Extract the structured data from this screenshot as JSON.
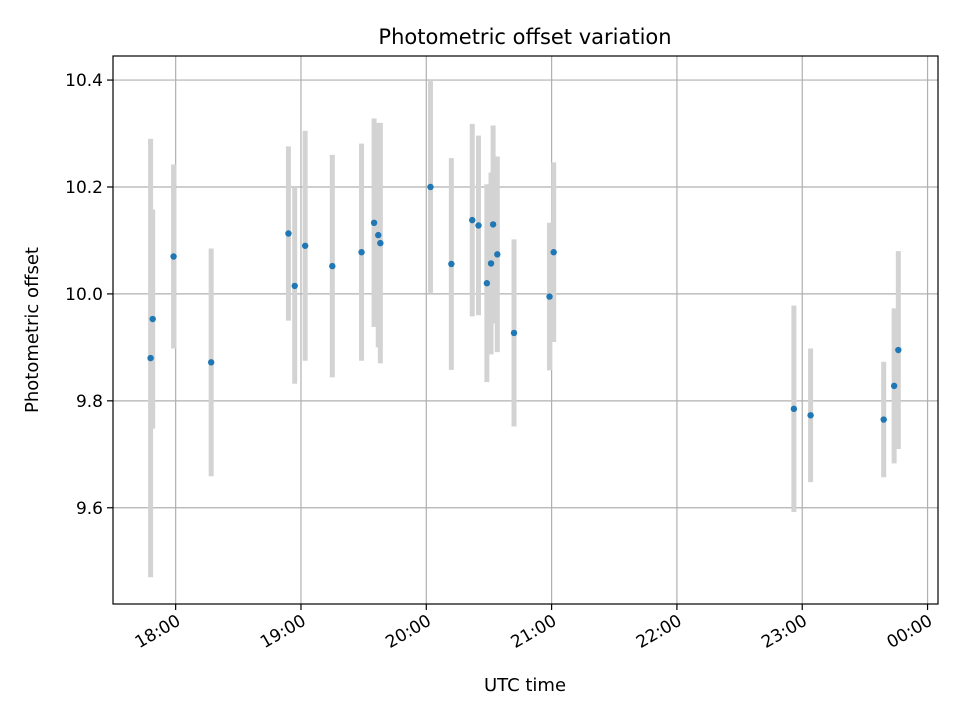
{
  "chart_data": {
    "type": "scatter",
    "title": "Photometric offset variation",
    "xlabel": "UTC time",
    "ylabel": "Photometric offset",
    "xlim": [
      "17:30",
      "00:05"
    ],
    "ylim": [
      9.42,
      10.445
    ],
    "xticks": [
      "18:00",
      "19:00",
      "20:00",
      "21:00",
      "22:00",
      "23:00",
      "00:00"
    ],
    "yticks": [
      "9.6",
      "9.8",
      "10.0",
      "10.2",
      "10.4"
    ],
    "grid": true,
    "colors": {
      "point": "#1f77b4",
      "errorbar": "#d3d3d3",
      "grid": "#b0b0b0"
    },
    "points": [
      {
        "x": "17:48",
        "y": 9.88,
        "err": 0.41
      },
      {
        "x": "17:49",
        "y": 9.953,
        "err": 0.205
      },
      {
        "x": "17:59",
        "y": 10.07,
        "err": 0.172
      },
      {
        "x": "18:17",
        "y": 9.872,
        "err": 0.213
      },
      {
        "x": "18:54",
        "y": 10.113,
        "err": 0.163
      },
      {
        "x": "18:57",
        "y": 10.015,
        "err": 0.183
      },
      {
        "x": "19:02",
        "y": 10.09,
        "err": 0.215
      },
      {
        "x": "19:15",
        "y": 10.052,
        "err": 0.208
      },
      {
        "x": "19:29",
        "y": 10.078,
        "err": 0.203
      },
      {
        "x": "19:35",
        "y": 10.133,
        "err": 0.195
      },
      {
        "x": "19:37",
        "y": 10.11,
        "err": 0.21
      },
      {
        "x": "19:38",
        "y": 10.095,
        "err": 0.225
      },
      {
        "x": "20:02",
        "y": 10.2,
        "err": 0.198
      },
      {
        "x": "20:12",
        "y": 10.056,
        "err": 0.198
      },
      {
        "x": "20:22",
        "y": 10.138,
        "err": 0.18
      },
      {
        "x": "20:25",
        "y": 10.128,
        "err": 0.168
      },
      {
        "x": "20:29",
        "y": 10.02,
        "err": 0.185
      },
      {
        "x": "20:31",
        "y": 10.057,
        "err": 0.17
      },
      {
        "x": "20:32",
        "y": 10.13,
        "err": 0.185
      },
      {
        "x": "20:34",
        "y": 10.074,
        "err": 0.183
      },
      {
        "x": "20:42",
        "y": 9.927,
        "err": 0.175
      },
      {
        "x": "20:59",
        "y": 9.995,
        "err": 0.138
      },
      {
        "x": "21:01",
        "y": 10.078,
        "err": 0.168
      },
      {
        "x": "22:56",
        "y": 9.785,
        "err": 0.193
      },
      {
        "x": "23:04",
        "y": 9.773,
        "err": 0.125
      },
      {
        "x": "23:39",
        "y": 9.765,
        "err": 0.108
      },
      {
        "x": "23:44",
        "y": 9.828,
        "err": 0.145
      },
      {
        "x": "23:46",
        "y": 9.895,
        "err": 0.185
      }
    ]
  }
}
